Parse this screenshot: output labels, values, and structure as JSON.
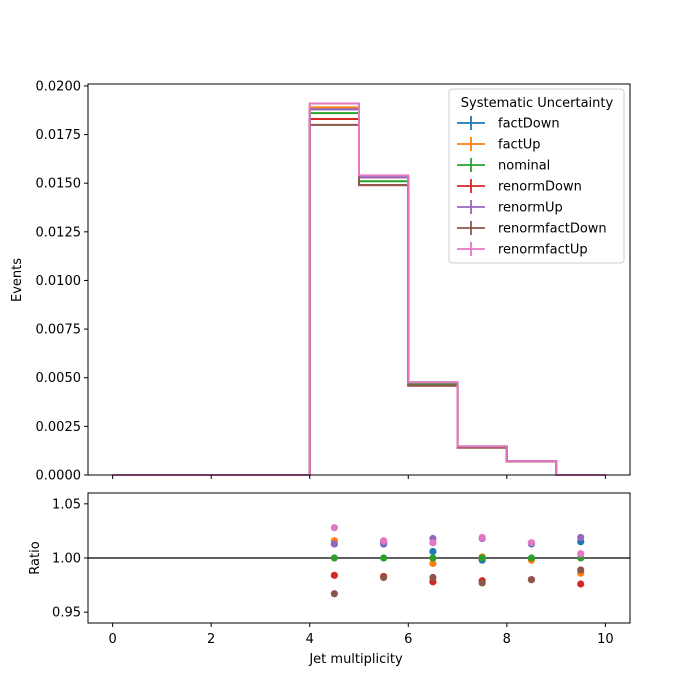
{
  "chart_data": [
    {
      "type": "step",
      "panel": "main",
      "ylabel": "Events",
      "xlim": [
        -0.5,
        10.5
      ],
      "ylim": [
        0,
        0.0201
      ],
      "yticks": [
        0.0,
        0.0025,
        0.005,
        0.0075,
        0.01,
        0.0125,
        0.015,
        0.0175,
        0.02
      ],
      "ytick_labels": [
        "0.0000",
        "0.0025",
        "0.0050",
        "0.0075",
        "0.0100",
        "0.0125",
        "0.0150",
        "0.0175",
        "0.0200"
      ],
      "bin_edges": [
        0,
        1,
        2,
        3,
        4,
        5,
        6,
        7,
        8,
        9,
        10
      ],
      "legend": {
        "title": "Systematic Uncertainty",
        "placement": "top-right"
      },
      "series": [
        {
          "name": "factDown",
          "color": "#1f77b4",
          "values": [
            0,
            0,
            0,
            0,
            0.0188,
            0.0153,
            0.00475,
            0.00145,
            0.000715,
            0
          ]
        },
        {
          "name": "factUp",
          "color": "#ff7f0e",
          "values": [
            0,
            0,
            0,
            0,
            0.0189,
            0.0153,
            0.00467,
            0.00144,
            0.000706,
            0
          ]
        },
        {
          "name": "nominal",
          "color": "#2ca02c",
          "values": [
            0,
            0,
            0,
            0,
            0.0186,
            0.0151,
            0.00469,
            0.00144,
            0.000707,
            0
          ]
        },
        {
          "name": "renormDown",
          "color": "#d62728",
          "values": [
            0,
            0,
            0,
            0,
            0.0183,
            0.0149,
            0.00459,
            0.00141,
            0.000693,
            0
          ]
        },
        {
          "name": "renormUp",
          "color": "#9467bd",
          "values": [
            0,
            0,
            0,
            0,
            0.0188,
            0.0153,
            0.00477,
            0.00147,
            0.000717,
            0
          ]
        },
        {
          "name": "renormfactDown",
          "color": "#8c564b",
          "values": [
            0,
            0,
            0,
            0,
            0.018,
            0.0149,
            0.0046,
            0.00141,
            0.000693,
            0
          ]
        },
        {
          "name": "renormfactUp",
          "color": "#e377c2",
          "values": [
            0,
            0,
            0,
            0,
            0.0191,
            0.0154,
            0.00476,
            0.00147,
            0.000716,
            0
          ]
        }
      ]
    },
    {
      "type": "scatter",
      "panel": "ratio",
      "xlabel": "Jet multiplicity",
      "ylabel": "Ratio",
      "xlim": [
        -0.5,
        10.5
      ],
      "ylim": [
        0.94,
        1.06
      ],
      "xticks": [
        0,
        2,
        4,
        6,
        8,
        10
      ],
      "xtick_labels": [
        "0",
        "2",
        "4",
        "6",
        "8",
        "10"
      ],
      "yticks": [
        0.95,
        1.0,
        1.05
      ],
      "ytick_labels": [
        "0.95",
        "1.00",
        "1.05"
      ],
      "reference_line": 1.0,
      "x": [
        4.5,
        5.5,
        6.5,
        7.5,
        8.5,
        9.5
      ],
      "series": [
        {
          "name": "factDown",
          "color": "#1f77b4",
          "values": [
            1.013,
            1.013,
            1.006,
            0.998,
            1.013,
            1.015
          ]
        },
        {
          "name": "factUp",
          "color": "#ff7f0e",
          "values": [
            1.016,
            1.015,
            0.995,
            1.001,
            0.998,
            0.986
          ]
        },
        {
          "name": "nominal",
          "color": "#2ca02c",
          "values": [
            1.0,
            1.0,
            1.0,
            1.0,
            1.0,
            1.0
          ]
        },
        {
          "name": "renormDown",
          "color": "#d62728",
          "values": [
            0.984,
            0.983,
            0.978,
            0.979,
            0.98,
            0.976
          ]
        },
        {
          "name": "renormUp",
          "color": "#9467bd",
          "values": [
            1.013,
            1.014,
            1.018,
            1.018,
            1.014,
            1.019
          ]
        },
        {
          "name": "renormfactDown",
          "color": "#8c564b",
          "values": [
            0.967,
            0.982,
            0.982,
            0.977,
            0.98,
            0.989
          ]
        },
        {
          "name": "renormfactUp",
          "color": "#e377c2",
          "values": [
            1.028,
            1.016,
            1.014,
            1.019,
            1.014,
            1.004
          ]
        }
      ]
    }
  ]
}
